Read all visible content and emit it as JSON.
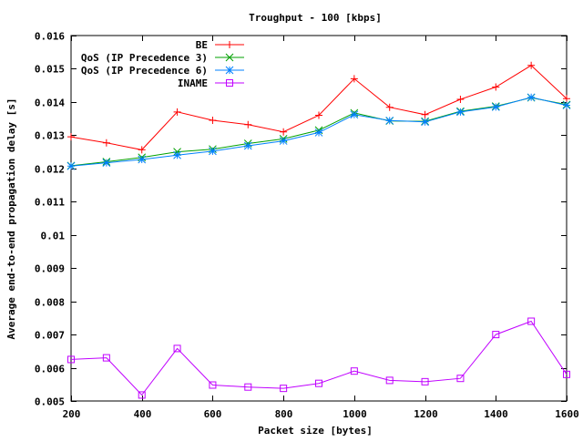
{
  "chart_data": {
    "type": "line",
    "title": "Troughput - 100 [kbps]",
    "xlabel": "Packet size [bytes]",
    "ylabel": "Average end-to-end propagation delay [s]",
    "xlim": [
      200,
      1600
    ],
    "ylim": [
      0.005,
      0.016
    ],
    "xticks": [
      200,
      400,
      600,
      800,
      1000,
      1200,
      1400,
      1600
    ],
    "xtick_labels": [
      "200",
      "400",
      "600",
      "800",
      "1000",
      "1200",
      "1400",
      "1600"
    ],
    "yticks": [
      0.005,
      0.006,
      0.007,
      0.008,
      0.009,
      0.01,
      0.011,
      0.012,
      0.013,
      0.014,
      0.015,
      0.016
    ],
    "ytick_labels": [
      "0.005",
      "0.006",
      "0.007",
      "0.008",
      "0.009",
      "0.01",
      "0.011",
      "0.012",
      "0.013",
      "0.014",
      "0.015",
      "0.016"
    ],
    "grid": false,
    "legend_position": "top-left",
    "x": [
      200,
      300,
      400,
      500,
      600,
      700,
      800,
      900,
      1000,
      1100,
      1200,
      1300,
      1400,
      1500,
      1600
    ],
    "series": [
      {
        "name": "BE",
        "color": "#ff0000",
        "marker": "plus",
        "values": [
          0.01295,
          0.01277,
          0.01256,
          0.0137,
          0.01345,
          0.01332,
          0.0131,
          0.0136,
          0.0147,
          0.01384,
          0.01362,
          0.01408,
          0.01445,
          0.0151,
          0.0141
        ]
      },
      {
        "name": "QoS (IP Precedence 3)",
        "color": "#00a000",
        "marker": "x",
        "values": [
          0.01208,
          0.0122,
          0.01233,
          0.0125,
          0.01258,
          0.01275,
          0.01289,
          0.01315,
          0.01367,
          0.01343,
          0.01342,
          0.01372,
          0.01387,
          0.01413,
          0.01392
        ]
      },
      {
        "name": "QoS (IP Precedence 6)",
        "color": "#0080ff",
        "marker": "star",
        "values": [
          0.01207,
          0.01217,
          0.01227,
          0.0124,
          0.01252,
          0.01268,
          0.01283,
          0.01308,
          0.01362,
          0.01344,
          0.0134,
          0.0137,
          0.01385,
          0.01414,
          0.0139
        ]
      },
      {
        "name": "INAME",
        "color": "#c000ff",
        "marker": "square",
        "values": [
          0.00625,
          0.0063,
          0.00518,
          0.00658,
          0.00548,
          0.00542,
          0.00538,
          0.00553,
          0.0059,
          0.00562,
          0.00558,
          0.00568,
          0.007,
          0.0074,
          0.0058
        ]
      }
    ]
  }
}
